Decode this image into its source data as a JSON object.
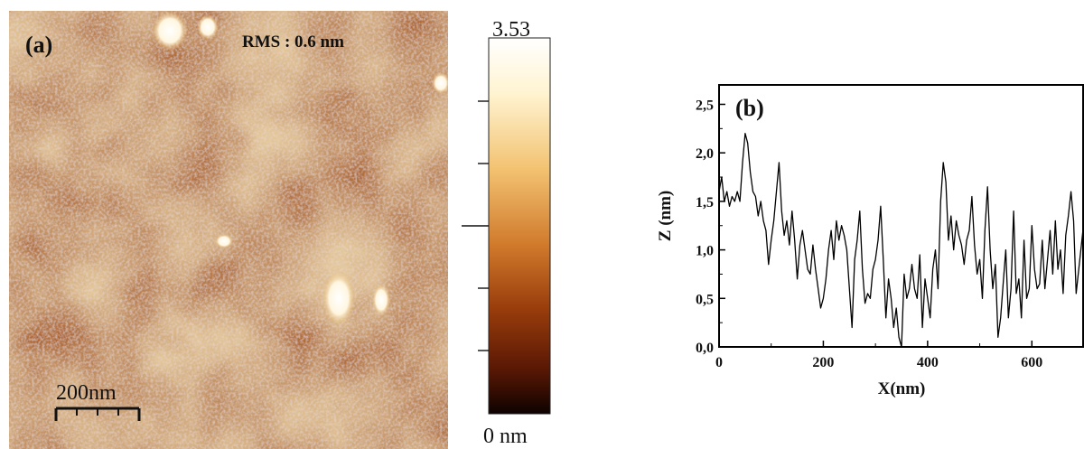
{
  "panel_a": {
    "label": "(a)",
    "rms_text": "RMS : 0.6 nm",
    "scale_bar_text": "200nm"
  },
  "colorbar": {
    "max_label": "3.53",
    "min_label": "0 nm",
    "colors": [
      "#ffffff",
      "#fff3d0",
      "#f2c271",
      "#d17a2c",
      "#993d0c",
      "#5a1804",
      "#0e0200"
    ]
  },
  "chart_data": {
    "type": "line",
    "title": "(b)",
    "xlabel": "X(nm)",
    "ylabel": "Z (nm)",
    "xlim": [
      0,
      700
    ],
    "ylim": [
      0,
      2.7
    ],
    "x_ticks": [
      0,
      200,
      400,
      600
    ],
    "x_tick_labels": [
      "0",
      "200",
      "400",
      "600"
    ],
    "y_ticks": [
      0,
      0.5,
      1.0,
      1.5,
      2.0,
      2.5
    ],
    "y_tick_labels": [
      "0,0",
      "0,5",
      "1,0",
      "1,5",
      "2,0",
      "2,5"
    ],
    "grid": false,
    "series": [
      {
        "color": "#000000",
        "x": [
          0,
          5,
          10,
          15,
          20,
          25,
          30,
          35,
          40,
          45,
          50,
          55,
          60,
          65,
          70,
          75,
          80,
          85,
          90,
          95,
          100,
          105,
          110,
          115,
          120,
          125,
          130,
          135,
          140,
          145,
          150,
          155,
          160,
          165,
          170,
          175,
          180,
          185,
          190,
          195,
          200,
          205,
          210,
          215,
          220,
          225,
          230,
          235,
          240,
          245,
          250,
          255,
          260,
          265,
          270,
          275,
          280,
          285,
          290,
          295,
          300,
          305,
          310,
          315,
          320,
          325,
          330,
          335,
          340,
          345,
          350,
          355,
          360,
          365,
          370,
          375,
          380,
          385,
          390,
          395,
          400,
          405,
          410,
          415,
          420,
          425,
          430,
          435,
          440,
          445,
          450,
          455,
          460,
          465,
          470,
          475,
          480,
          485,
          490,
          495,
          500,
          505,
          510,
          515,
          520,
          525,
          530,
          535,
          540,
          545,
          550,
          555,
          560,
          565,
          570,
          575,
          580,
          585,
          590,
          595,
          600,
          605,
          610,
          615,
          620,
          625,
          630,
          635,
          640,
          645,
          650,
          655,
          660,
          665,
          670,
          675,
          680,
          685,
          690,
          695,
          700
        ],
        "y": [
          1.6,
          1.75,
          1.5,
          1.6,
          1.45,
          1.55,
          1.5,
          1.6,
          1.5,
          1.9,
          2.2,
          2.1,
          1.8,
          1.6,
          1.55,
          1.35,
          1.5,
          1.3,
          1.2,
          0.85,
          1.1,
          1.3,
          1.6,
          1.9,
          1.4,
          1.15,
          1.3,
          1.05,
          1.4,
          1.1,
          0.7,
          1.05,
          1.2,
          1.0,
          0.8,
          0.75,
          1.05,
          0.8,
          0.6,
          0.4,
          0.5,
          0.7,
          1.0,
          1.2,
          0.9,
          1.3,
          1.1,
          1.25,
          1.15,
          1.0,
          0.6,
          0.2,
          0.9,
          1.1,
          1.4,
          0.8,
          0.45,
          0.55,
          0.5,
          0.8,
          0.9,
          1.1,
          1.45,
          0.9,
          0.3,
          0.7,
          0.5,
          0.2,
          0.4,
          0.1,
          0.0,
          0.75,
          0.5,
          0.6,
          0.85,
          0.6,
          0.5,
          0.95,
          0.2,
          0.7,
          0.5,
          0.3,
          0.8,
          1.0,
          0.6,
          1.5,
          1.9,
          1.7,
          1.1,
          1.35,
          1.0,
          1.3,
          1.15,
          1.05,
          0.85,
          1.1,
          1.2,
          1.55,
          1.05,
          0.75,
          0.9,
          0.5,
          1.2,
          1.65,
          1.0,
          0.6,
          0.85,
          0.1,
          0.3,
          0.65,
          1.0,
          0.3,
          0.6,
          1.4,
          0.55,
          0.7,
          0.3,
          1.1,
          0.5,
          0.6,
          1.25,
          0.8,
          0.6,
          0.65,
          1.1,
          0.6,
          0.9,
          1.2,
          0.75,
          1.3,
          0.8,
          1.0,
          0.55,
          1.15,
          1.35,
          1.6,
          1.3,
          0.55,
          0.8,
          1.05,
          1.3
        ]
      }
    ]
  }
}
